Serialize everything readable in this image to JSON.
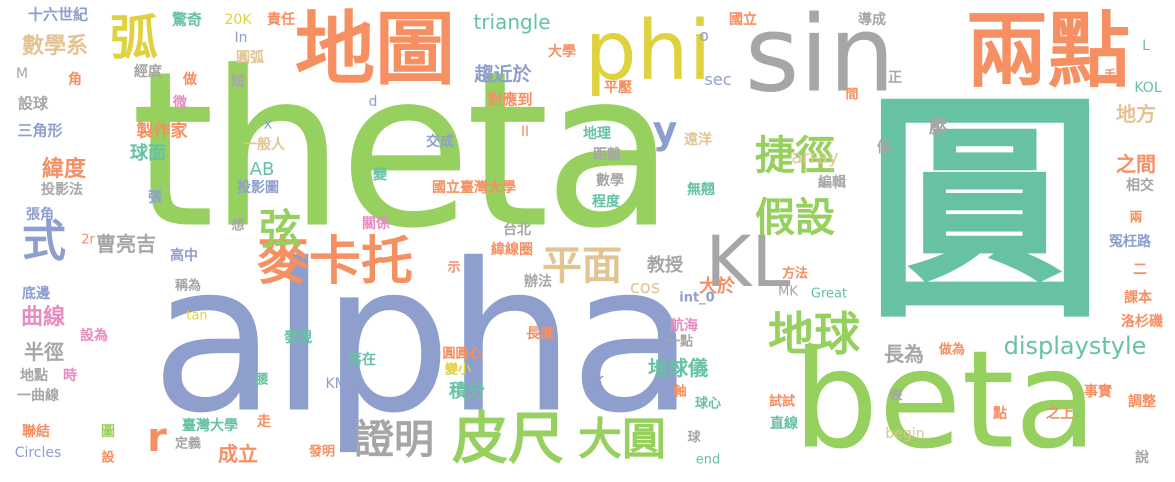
{
  "palette": {
    "green": "#96d05e",
    "purple": "#8e9fcd",
    "teal": "#66c2a2",
    "orange": "#f68f62",
    "gray": "#a6a6a6",
    "pink": "#e88bc0",
    "yellow": "#dfd23e",
    "tan": "#e2c492"
  },
  "words": [
    {
      "text": "theta",
      "color": "green"
    },
    {
      "text": "alpha",
      "color": "purple"
    },
    {
      "text": "圓",
      "color": "teal"
    },
    {
      "text": "beta",
      "color": "green"
    },
    {
      "text": "sin",
      "color": "gray"
    },
    {
      "text": "兩點",
      "color": "orange"
    },
    {
      "text": "地圖",
      "color": "orange"
    },
    {
      "text": "phi",
      "color": "yellow"
    },
    {
      "text": "KL",
      "color": "gray"
    },
    {
      "text": "皮尺",
      "color": "green"
    },
    {
      "text": "麥卡托",
      "color": "orange"
    },
    {
      "text": "地球",
      "color": "green"
    },
    {
      "text": "大圓",
      "color": "green"
    },
    {
      "text": "證明",
      "color": "gray"
    },
    {
      "text": "假設",
      "color": "green"
    },
    {
      "text": "捷徑",
      "color": "green"
    },
    {
      "text": "平面",
      "color": "tan"
    },
    {
      "text": "弧",
      "color": "yellow"
    },
    {
      "text": "式",
      "color": "purple"
    },
    {
      "text": "弦",
      "color": "green"
    },
    {
      "text": "y",
      "color": "purple"
    },
    {
      "text": "r",
      "color": "orange"
    },
    {
      "text": "displaystyle",
      "color": "teal"
    },
    {
      "text": "緯度",
      "color": "orange"
    },
    {
      "text": "地方",
      "color": "tan"
    },
    {
      "text": "之間",
      "color": "orange"
    },
    {
      "text": "地球儀",
      "color": "teal"
    },
    {
      "text": "長為",
      "color": "gray"
    },
    {
      "text": "數學系",
      "color": "tan"
    },
    {
      "text": "曲線",
      "color": "pink"
    },
    {
      "text": "趨近於",
      "color": "purple"
    },
    {
      "text": "triangle",
      "color": "teal"
    },
    {
      "text": "球面",
      "color": "teal"
    },
    {
      "text": "曹亮吉",
      "color": "gray"
    },
    {
      "text": "成立",
      "color": "orange"
    },
    {
      "text": "積分",
      "color": "teal"
    },
    {
      "text": "教授",
      "color": "gray"
    },
    {
      "text": "大於",
      "color": "orange"
    },
    {
      "text": "array",
      "color": "tan"
    },
    {
      "text": "cos",
      "color": "tan"
    },
    {
      "text": "半徑",
      "color": "gray"
    },
    {
      "text": "壓",
      "color": "gray"
    },
    {
      "text": "AB",
      "color": "teal"
    },
    {
      "text": "K",
      "color": "purple"
    },
    {
      "text": "十六世紀",
      "color": "purple"
    },
    {
      "text": "驚奇",
      "color": "teal"
    },
    {
      "text": "20K",
      "color": "yellow"
    },
    {
      "text": "責任",
      "color": "orange"
    },
    {
      "text": "In",
      "color": "purple"
    },
    {
      "text": "圓弧",
      "color": "tan"
    },
    {
      "text": "o",
      "color": "purple"
    },
    {
      "text": "國立",
      "color": "orange"
    },
    {
      "text": "導成",
      "color": "gray"
    },
    {
      "text": "L",
      "color": "teal"
    },
    {
      "text": "M",
      "color": "gray"
    },
    {
      "text": "角",
      "color": "orange"
    },
    {
      "text": "經度",
      "color": "gray"
    },
    {
      "text": "做",
      "color": "orange"
    },
    {
      "text": "短",
      "color": "gray"
    },
    {
      "text": "大學",
      "color": "orange"
    },
    {
      "text": "對應到",
      "color": "orange"
    },
    {
      "text": "平壓",
      "color": "orange"
    },
    {
      "text": "sec",
      "color": "purple"
    },
    {
      "text": "正",
      "color": "gray"
    },
    {
      "text": "手",
      "color": "orange"
    },
    {
      "text": "KOL",
      "color": "teal"
    },
    {
      "text": "設球",
      "color": "gray"
    },
    {
      "text": "微",
      "color": "pink"
    },
    {
      "text": "d",
      "color": "purple"
    },
    {
      "text": "間",
      "color": "orange"
    },
    {
      "text": "三角形",
      "color": "purple"
    },
    {
      "text": "製作家",
      "color": "orange"
    },
    {
      "text": "x",
      "color": "purple"
    },
    {
      "text": "一般人",
      "color": "tan"
    },
    {
      "text": "II",
      "color": "orange"
    },
    {
      "text": "交成",
      "color": "purple"
    },
    {
      "text": "地理",
      "color": "teal"
    },
    {
      "text": "遠洋",
      "color": "tan"
    },
    {
      "text": "距離",
      "color": "gray"
    },
    {
      "text": "條",
      "color": "gray"
    },
    {
      "text": "投影法",
      "color": "gray"
    },
    {
      "text": "變",
      "color": "teal"
    },
    {
      "text": "投影圖",
      "color": "purple"
    },
    {
      "text": "國立臺灣大學",
      "color": "orange"
    },
    {
      "text": "數學",
      "color": "gray"
    },
    {
      "text": "無翹",
      "color": "teal"
    },
    {
      "text": "編輯",
      "color": "gray"
    },
    {
      "text": "相交",
      "color": "gray"
    },
    {
      "text": "張",
      "color": "purple"
    },
    {
      "text": "程度",
      "color": "teal"
    },
    {
      "text": "張角",
      "color": "purple"
    },
    {
      "text": "想",
      "color": "gray"
    },
    {
      "text": "關係",
      "color": "pink"
    },
    {
      "text": "台北",
      "color": "gray"
    },
    {
      "text": "兩",
      "color": "orange"
    },
    {
      "text": "2r",
      "color": "orange"
    },
    {
      "text": "緯線圈",
      "color": "orange"
    },
    {
      "text": "冤枉路",
      "color": "purple"
    },
    {
      "text": "高中",
      "color": "purple"
    },
    {
      "text": "示",
      "color": "orange"
    },
    {
      "text": "二",
      "color": "orange"
    },
    {
      "text": "稱為",
      "color": "gray"
    },
    {
      "text": "辦法",
      "color": "gray"
    },
    {
      "text": "方法",
      "color": "orange"
    },
    {
      "text": "底邊",
      "color": "purple"
    },
    {
      "text": "int_0",
      "color": "purple"
    },
    {
      "text": "MK",
      "color": "gray"
    },
    {
      "text": "Great",
      "color": "teal"
    },
    {
      "text": "課本",
      "color": "orange"
    },
    {
      "text": "tan",
      "color": "yellow"
    },
    {
      "text": "洛杉磯",
      "color": "orange"
    },
    {
      "text": "設為",
      "color": "pink"
    },
    {
      "text": "航海",
      "color": "pink"
    },
    {
      "text": "長度",
      "color": "orange"
    },
    {
      "text": "一點",
      "color": "gray"
    },
    {
      "text": "發現",
      "color": "teal"
    },
    {
      "text": "圓圓心",
      "color": "orange"
    },
    {
      "text": "落在",
      "color": "teal"
    },
    {
      "text": "做為",
      "color": "orange"
    },
    {
      "text": "地點",
      "color": "gray"
    },
    {
      "text": "時",
      "color": "pink"
    },
    {
      "text": "變小",
      "color": "yellow"
    },
    {
      "text": "KML",
      "color": "purple"
    },
    {
      "text": "腰",
      "color": "teal"
    },
    {
      "text": "一曲線",
      "color": "gray"
    },
    {
      "text": "軸",
      "color": "orange"
    },
    {
      "text": "表",
      "color": "gray"
    },
    {
      "text": "事實",
      "color": "orange"
    },
    {
      "text": "試試",
      "color": "orange"
    },
    {
      "text": "調整",
      "color": "orange"
    },
    {
      "text": "點",
      "color": "orange"
    },
    {
      "text": "之上",
      "color": "orange"
    },
    {
      "text": "球心",
      "color": "teal"
    },
    {
      "text": "直線",
      "color": "teal"
    },
    {
      "text": "聯結",
      "color": "orange"
    },
    {
      "text": "臺灣大學",
      "color": "teal"
    },
    {
      "text": "走",
      "color": "orange"
    },
    {
      "text": "圖",
      "color": "green"
    },
    {
      "text": "定義",
      "color": "gray"
    },
    {
      "text": "begin",
      "color": "tan"
    },
    {
      "text": "Circles",
      "color": "purple"
    },
    {
      "text": "設",
      "color": "orange"
    },
    {
      "text": "發明",
      "color": "orange"
    },
    {
      "text": "球",
      "color": "gray"
    },
    {
      "text": "end",
      "color": "teal"
    },
    {
      "text": "說",
      "color": "gray"
    }
  ]
}
